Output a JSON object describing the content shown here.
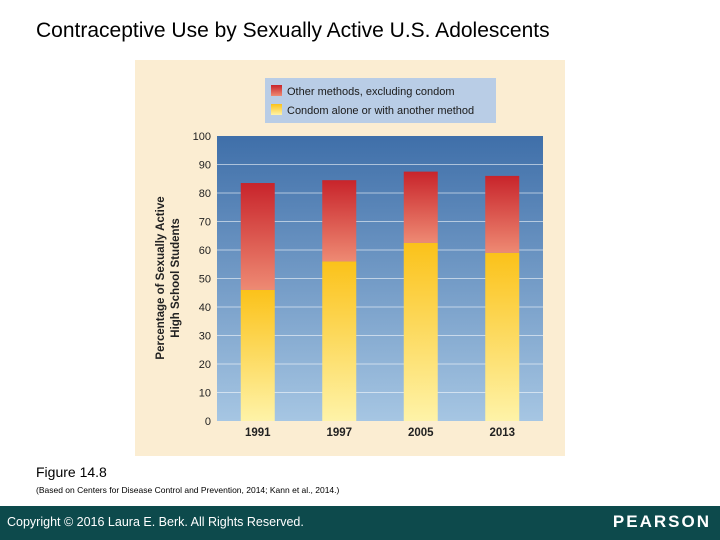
{
  "slide": {
    "title": "Contraceptive Use by Sexually Active U.S. Adolescents",
    "figure_label": "Figure 14.8",
    "source_note": "(Based on Centers for Disease Control and Prevention, 2014; Kann et al., 2014.)",
    "copyright": "Copyright © 2016 Laura E. Berk. All Rights Reserved.",
    "publisher": "PEARSON"
  },
  "colors": {
    "panel_bg": "#fbedd2",
    "plot_bg_top": "#3f6fa9",
    "plot_bg_bottom": "#a6c6e3",
    "legend_bg": "#b9cde6",
    "other_top": "#c8242b",
    "other_bottom": "#ee8a73",
    "condom_top": "#fbc21a",
    "condom_bottom": "#fef3a8",
    "footer_bg": "#0d4a4c"
  },
  "chart_data": {
    "type": "bar",
    "stacked": true,
    "title": "",
    "xlabel": "",
    "ylabel": "Percentage of Sexually Active High School Students",
    "ylabel_lines": [
      "Percentage of Sexually Active",
      "High School Students"
    ],
    "ylim": [
      0,
      100
    ],
    "yticks": [
      0,
      10,
      20,
      30,
      40,
      50,
      60,
      70,
      80,
      90,
      100
    ],
    "grid": true,
    "legend_position": "top",
    "categories": [
      "1991",
      "1997",
      "2005",
      "2013"
    ],
    "series": [
      {
        "name": "Condom alone or with another method",
        "values": [
          46,
          56,
          62.5,
          59
        ]
      },
      {
        "name": "Other methods, excluding condom",
        "values": [
          37.5,
          28.5,
          25,
          27
        ]
      }
    ]
  }
}
